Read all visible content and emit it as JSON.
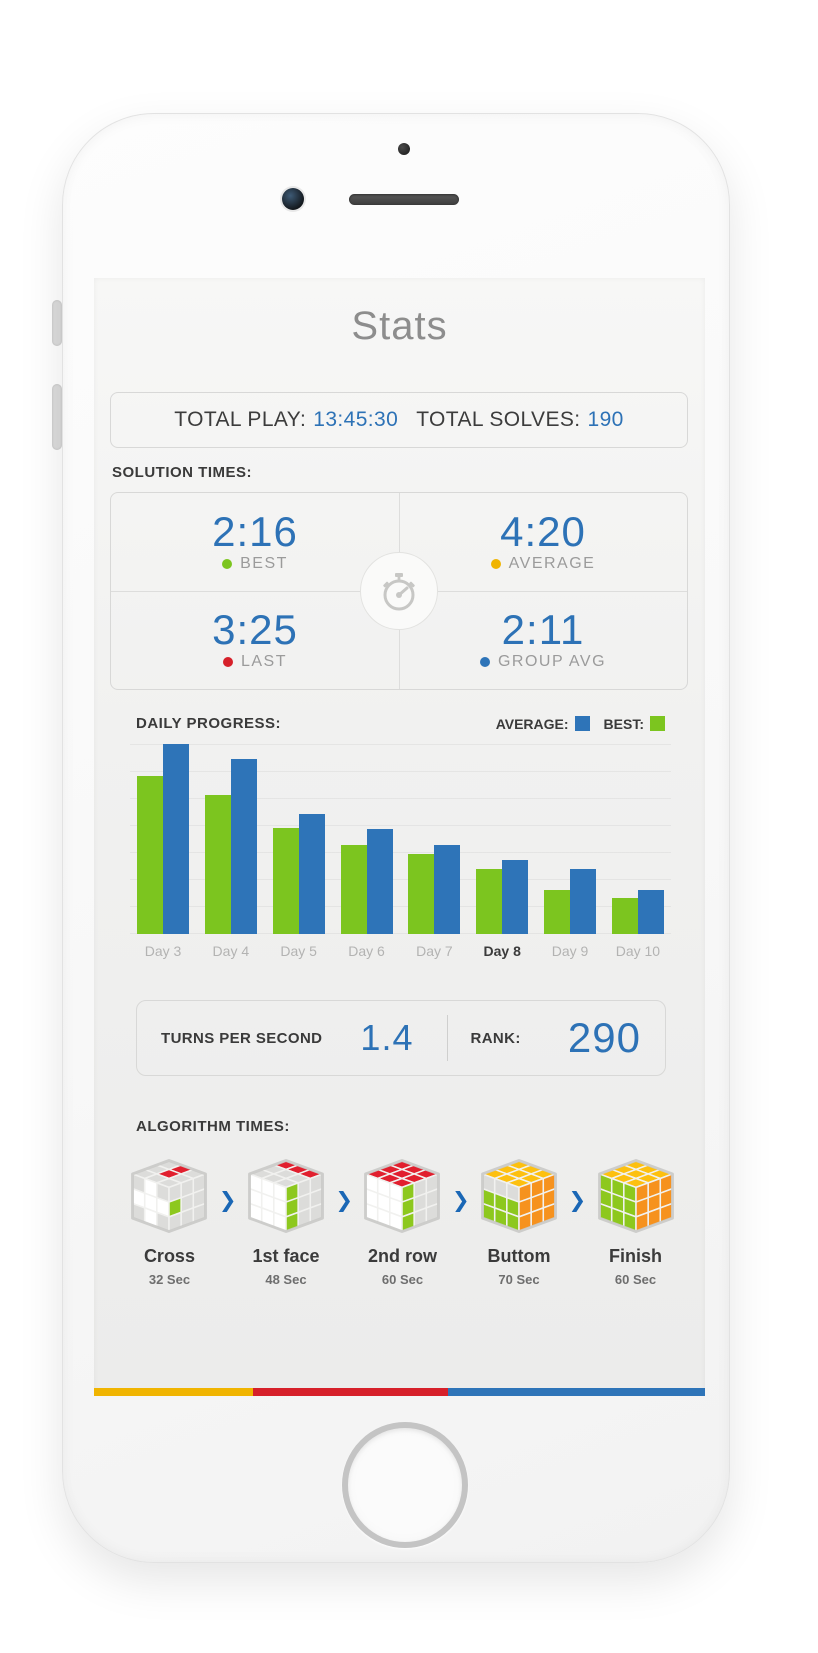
{
  "screen": {
    "title": "Stats",
    "totals": {
      "play_label": "TOTAL PLAY:",
      "play_value": "13:45:30",
      "solves_label": "TOTAL SOLVES:",
      "solves_value": "190"
    },
    "solution_times": {
      "heading": "SOLUTION TIMES:",
      "stats": [
        {
          "value": "2:16",
          "label": "BEST",
          "dot_color": "#7cc51f"
        },
        {
          "value": "4:20",
          "label": "AVERAGE",
          "dot_color": "#f0b400"
        },
        {
          "value": "3:25",
          "label": "LAST",
          "dot_color": "#d6202a"
        },
        {
          "value": "2:11",
          "label": "GROUP AVG",
          "dot_color": "#2e74b8"
        }
      ],
      "center_icon": "stopwatch-icon"
    },
    "daily_progress": {
      "heading": "DAILY PROGRESS:",
      "legend": [
        {
          "label": "AVERAGE:",
          "color": "#2e74b8"
        },
        {
          "label": "BEST:",
          "color": "#7cc51f"
        }
      ]
    },
    "tps": {
      "label": "TURNS PER SECOND",
      "value": "1.4",
      "rank_label": "RANK:",
      "rank_value": "290"
    },
    "algorithm": {
      "heading": "ALGORITHM TIMES:",
      "steps": [
        {
          "label": "Cross",
          "time": "32 Sec",
          "faces": {
            "top": [
              [
                "G",
                "R",
                "G"
              ],
              [
                "G",
                "R",
                "G"
              ],
              [
                "G",
                "G",
                "G"
              ]
            ],
            "front": [
              [
                "G",
                "W",
                "G"
              ],
              [
                "W",
                "W",
                "W"
              ],
              [
                "G",
                "W",
                "G"
              ]
            ],
            "right": [
              [
                "G",
                "G",
                "G"
              ],
              [
                "L",
                "G",
                "G"
              ],
              [
                "G",
                "G",
                "G"
              ]
            ]
          }
        },
        {
          "label": "1st face",
          "time": "48 Sec",
          "faces": {
            "top": [
              [
                "R",
                "R",
                "R"
              ],
              [
                "G",
                "G",
                "G"
              ],
              [
                "G",
                "G",
                "G"
              ]
            ],
            "front": [
              [
                "W",
                "W",
                "W"
              ],
              [
                "W",
                "W",
                "W"
              ],
              [
                "W",
                "W",
                "W"
              ]
            ],
            "right": [
              [
                "L",
                "G",
                "G"
              ],
              [
                "L",
                "G",
                "G"
              ],
              [
                "L",
                "G",
                "G"
              ]
            ]
          }
        },
        {
          "label": "2nd row",
          "time": "60 Sec",
          "faces": {
            "top": [
              [
                "R",
                "R",
                "R"
              ],
              [
                "R",
                "R",
                "R"
              ],
              [
                "R",
                "R",
                "R"
              ]
            ],
            "front": [
              [
                "W",
                "W",
                "W"
              ],
              [
                "W",
                "W",
                "W"
              ],
              [
                "W",
                "W",
                "W"
              ]
            ],
            "right": [
              [
                "L",
                "G",
                "G"
              ],
              [
                "L",
                "G",
                "G"
              ],
              [
                "L",
                "G",
                "G"
              ]
            ]
          }
        },
        {
          "label": "Buttom",
          "time": "70 Sec",
          "faces": {
            "top": [
              [
                "Y",
                "Y",
                "Y"
              ],
              [
                "Y",
                "Y",
                "Y"
              ],
              [
                "Y",
                "Y",
                "Y"
              ]
            ],
            "front": [
              [
                "G",
                "G",
                "G"
              ],
              [
                "L",
                "L",
                "L"
              ],
              [
                "L",
                "L",
                "L"
              ]
            ],
            "right": [
              [
                "O",
                "O",
                "O"
              ],
              [
                "O",
                "O",
                "O"
              ],
              [
                "O",
                "O",
                "O"
              ]
            ]
          }
        },
        {
          "label": "Finish",
          "time": "60 Sec",
          "faces": {
            "top": [
              [
                "Y",
                "Y",
                "Y"
              ],
              [
                "Y",
                "Y",
                "Y"
              ],
              [
                "Y",
                "Y",
                "Y"
              ]
            ],
            "front": [
              [
                "L",
                "L",
                "L"
              ],
              [
                "L",
                "L",
                "L"
              ],
              [
                "L",
                "L",
                "L"
              ]
            ],
            "right": [
              [
                "O",
                "O",
                "O"
              ],
              [
                "O",
                "O",
                "O"
              ],
              [
                "O",
                "O",
                "O"
              ]
            ]
          }
        }
      ],
      "sticker_palette": {
        "W": "#ffffff",
        "G": "#dcdcda",
        "R": "#e11f2e",
        "L": "#8dc81e",
        "O": "#f6921e",
        "Y": "#fdc00f"
      },
      "arrow_color": "#1a67b5"
    },
    "footer_stripe": {
      "colors": [
        "#f0b400",
        "#d6202a",
        "#2e74b8"
      ],
      "widths_pct": [
        26,
        32,
        42
      ]
    },
    "accent_blue": "#2d72b6"
  },
  "chart_data": {
    "type": "bar",
    "title": "DAILY PROGRESS:",
    "categories": [
      "Day 3",
      "Day 4",
      "Day 5",
      "Day 6",
      "Day 7",
      "Day 8",
      "Day 9",
      "Day 10"
    ],
    "series": [
      {
        "name": "BEST",
        "color": "#7cc51f",
        "values": [
          83,
          73,
          56,
          47,
          42,
          34,
          23,
          19
        ]
      },
      {
        "name": "AVERAGE",
        "color": "#2e74b8",
        "values": [
          100,
          92,
          63,
          55,
          47,
          39,
          34,
          23
        ]
      }
    ],
    "xlabel": "",
    "ylabel": "",
    "ylim": [
      0,
      100
    ],
    "value_scale": "relative (y-axis unlabeled, normalized to tallest bar = 100)",
    "grid": "horizontal-light",
    "legend_position": "top-right",
    "highlight_category": "Day 8"
  }
}
